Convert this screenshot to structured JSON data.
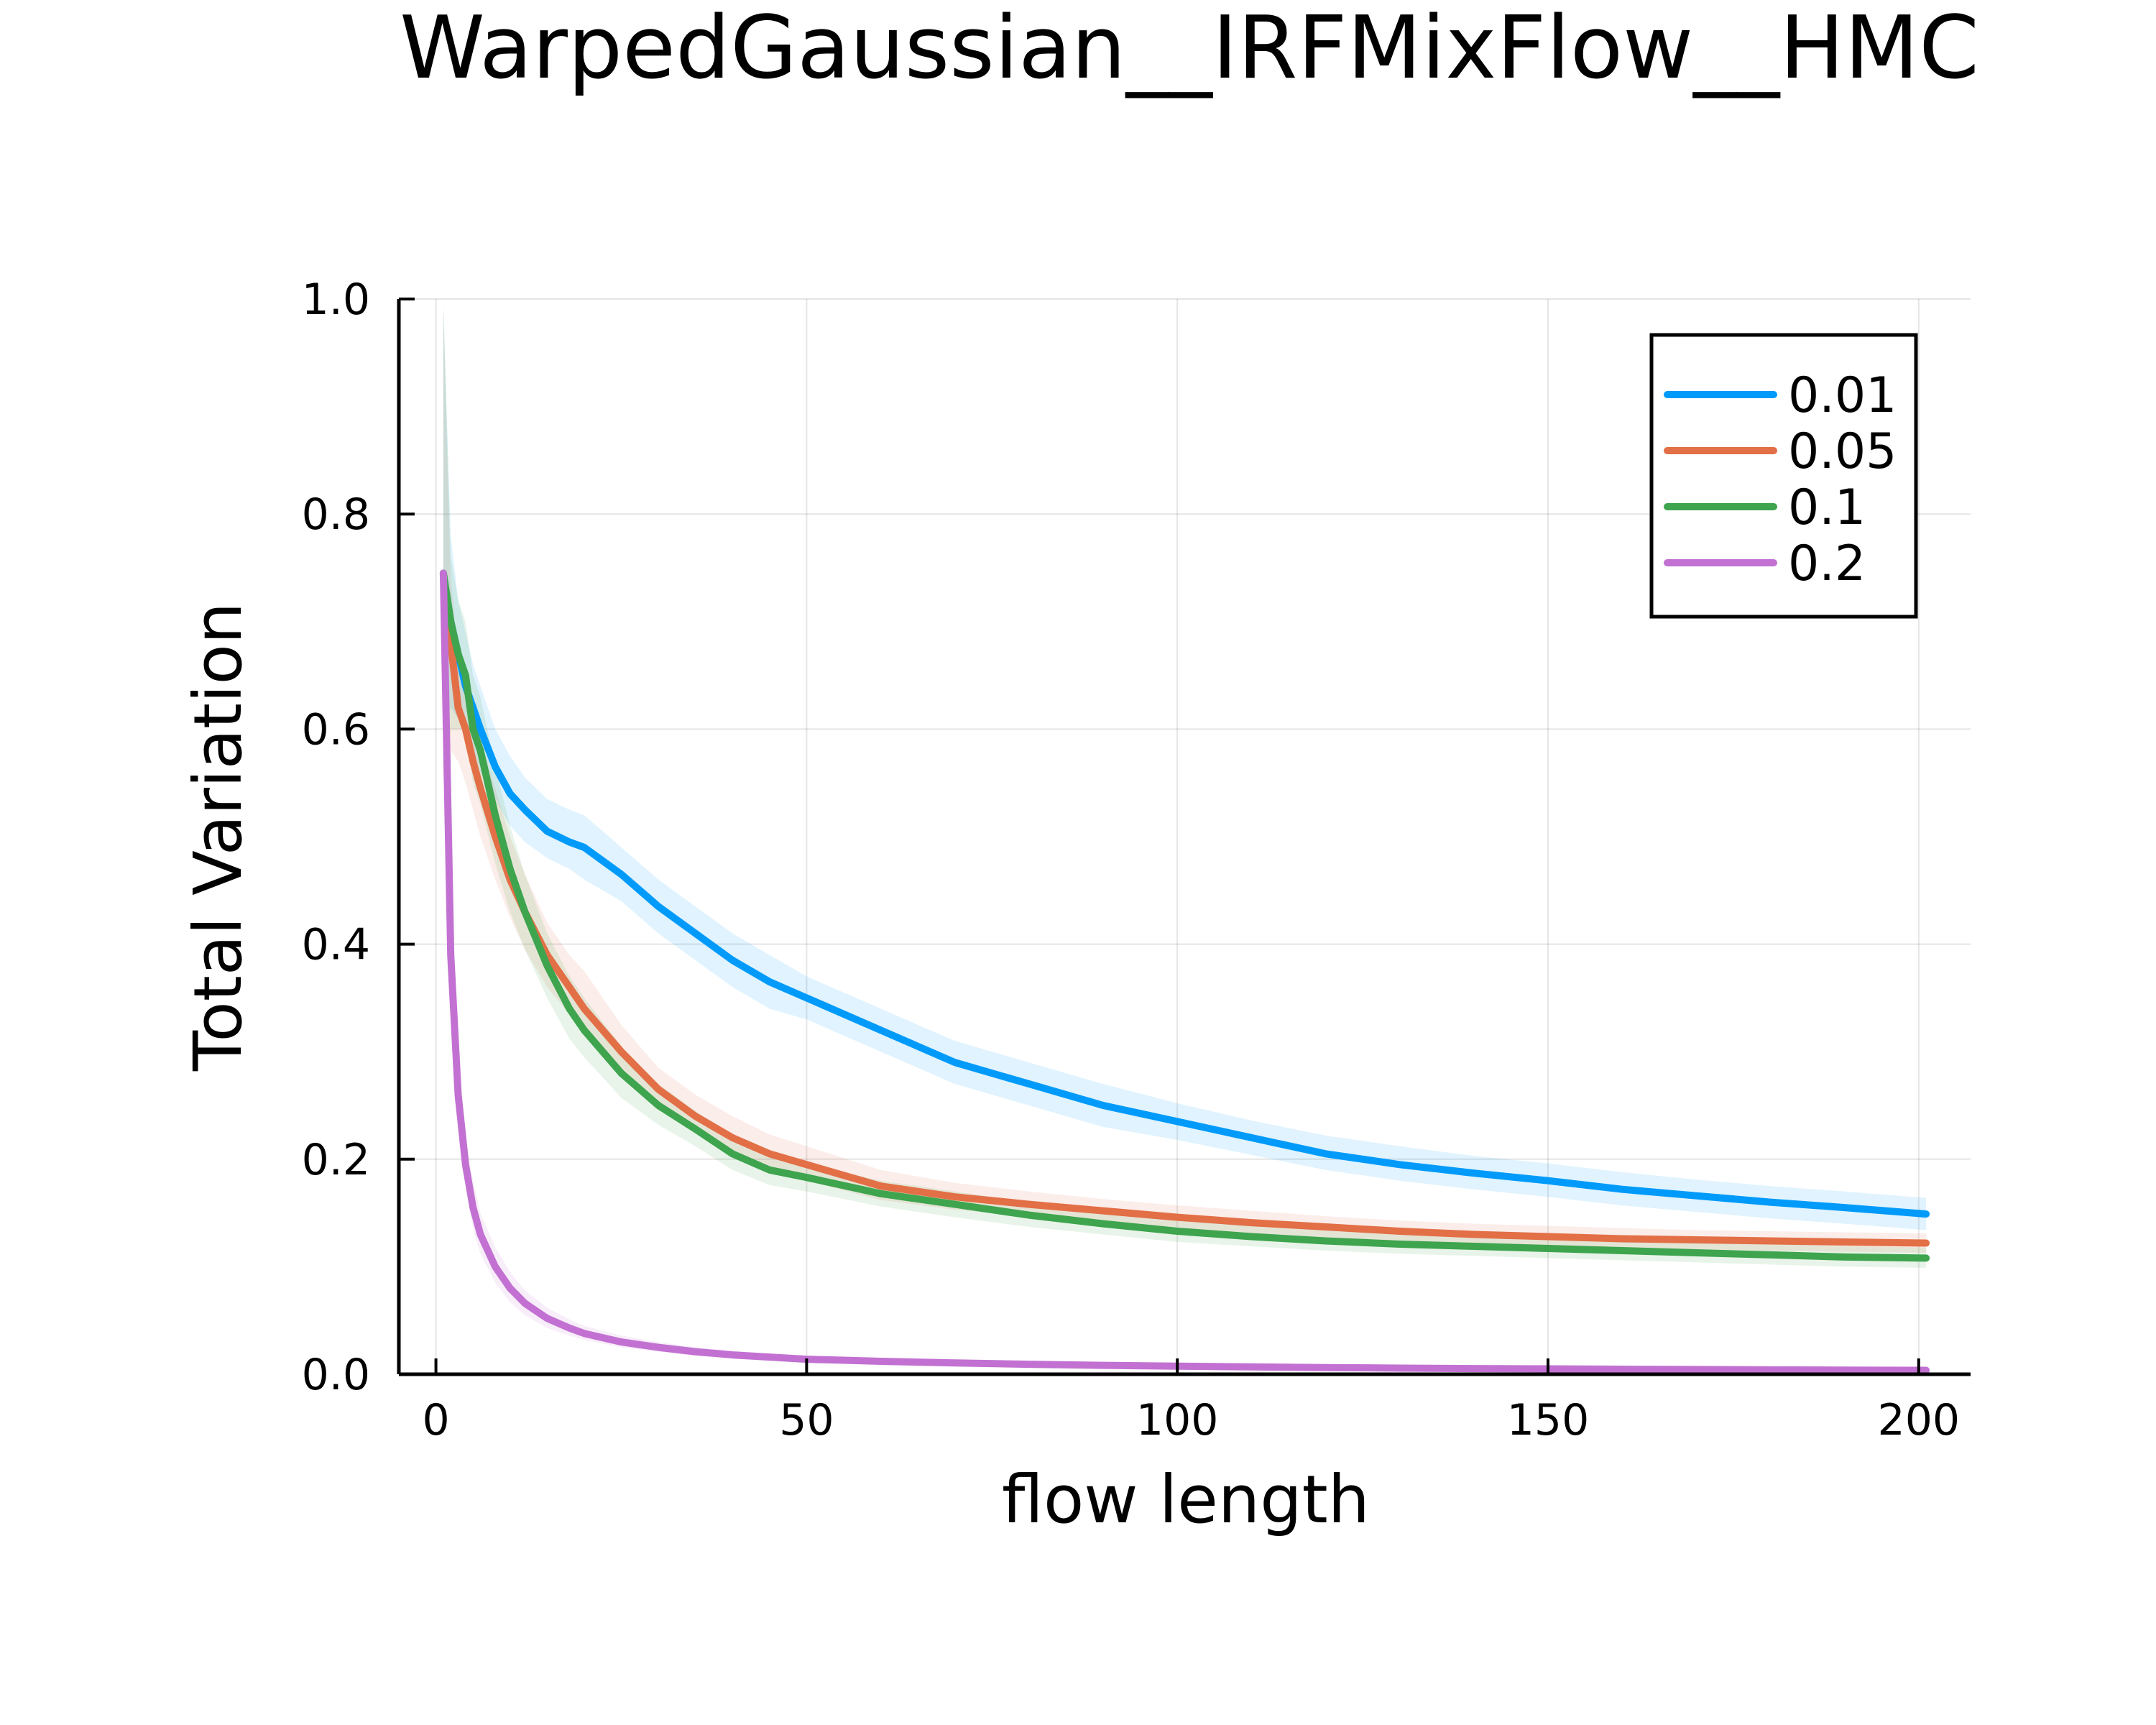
{
  "chart_data": {
    "type": "line",
    "title": "WarpedGaussian__IRFMixFlow__HMC",
    "xlabel": "flow length",
    "ylabel": "Total Variation",
    "xlim": [
      -5,
      207
    ],
    "ylim": [
      0,
      1.0
    ],
    "xticks": [
      "0",
      "50",
      "100",
      "150",
      "200"
    ],
    "yticks": [
      "0.0",
      "0.2",
      "0.4",
      "0.6",
      "0.8",
      "1.0"
    ],
    "grid": true,
    "legend_position": "top-right",
    "x": [
      1,
      2,
      3,
      4,
      5,
      6,
      8,
      10,
      12,
      15,
      18,
      20,
      25,
      30,
      35,
      40,
      45,
      50,
      60,
      70,
      80,
      90,
      100,
      110,
      120,
      130,
      140,
      150,
      160,
      170,
      180,
      190,
      201
    ],
    "series": [
      {
        "name": "0.01",
        "color": "#009AFA",
        "values": [
          0.745,
          0.7,
          0.67,
          0.64,
          0.62,
          0.6,
          0.565,
          0.54,
          0.525,
          0.505,
          0.495,
          0.49,
          0.465,
          0.435,
          0.41,
          0.385,
          0.365,
          0.35,
          0.32,
          0.29,
          0.27,
          0.25,
          0.235,
          0.22,
          0.205,
          0.195,
          0.187,
          0.18,
          0.172,
          0.166,
          0.16,
          0.155,
          0.149
        ],
        "band_upper": [
          0.99,
          0.78,
          0.72,
          0.69,
          0.66,
          0.64,
          0.6,
          0.575,
          0.555,
          0.535,
          0.525,
          0.52,
          0.49,
          0.46,
          0.435,
          0.41,
          0.39,
          0.37,
          0.34,
          0.31,
          0.29,
          0.27,
          0.252,
          0.236,
          0.222,
          0.212,
          0.203,
          0.196,
          0.188,
          0.181,
          0.175,
          0.17,
          0.164
        ],
        "band_lower": [
          0.6,
          0.62,
          0.61,
          0.59,
          0.58,
          0.56,
          0.535,
          0.51,
          0.495,
          0.48,
          0.47,
          0.46,
          0.44,
          0.41,
          0.385,
          0.36,
          0.34,
          0.33,
          0.3,
          0.27,
          0.25,
          0.23,
          0.218,
          0.204,
          0.19,
          0.18,
          0.172,
          0.165,
          0.157,
          0.151,
          0.145,
          0.14,
          0.134
        ]
      },
      {
        "name": "0.05",
        "color": "#E26F46",
        "values": [
          0.745,
          0.68,
          0.62,
          0.6,
          0.57,
          0.545,
          0.5,
          0.46,
          0.43,
          0.39,
          0.36,
          0.34,
          0.3,
          0.265,
          0.24,
          0.22,
          0.205,
          0.195,
          0.175,
          0.165,
          0.158,
          0.152,
          0.146,
          0.141,
          0.137,
          0.133,
          0.13,
          0.128,
          0.126,
          0.125,
          0.124,
          0.123,
          0.122
        ],
        "band_upper": [
          0.99,
          0.74,
          0.67,
          0.645,
          0.615,
          0.59,
          0.545,
          0.5,
          0.465,
          0.42,
          0.39,
          0.375,
          0.325,
          0.285,
          0.26,
          0.24,
          0.223,
          0.212,
          0.19,
          0.178,
          0.17,
          0.163,
          0.157,
          0.152,
          0.147,
          0.143,
          0.14,
          0.138,
          0.136,
          0.134,
          0.133,
          0.132,
          0.131
        ],
        "band_lower": [
          0.55,
          0.58,
          0.57,
          0.55,
          0.525,
          0.5,
          0.46,
          0.425,
          0.395,
          0.36,
          0.335,
          0.315,
          0.28,
          0.248,
          0.225,
          0.205,
          0.19,
          0.18,
          0.162,
          0.153,
          0.147,
          0.142,
          0.136,
          0.131,
          0.127,
          0.124,
          0.121,
          0.119,
          0.117,
          0.116,
          0.115,
          0.114,
          0.113
        ]
      },
      {
        "name": "0.1",
        "color": "#3EA44E",
        "values": [
          0.745,
          0.7,
          0.67,
          0.65,
          0.6,
          0.58,
          0.52,
          0.47,
          0.43,
          0.38,
          0.34,
          0.32,
          0.28,
          0.25,
          0.228,
          0.205,
          0.19,
          0.183,
          0.168,
          0.158,
          0.148,
          0.14,
          0.133,
          0.128,
          0.124,
          0.121,
          0.119,
          0.117,
          0.115,
          0.113,
          0.111,
          0.109,
          0.108
        ],
        "band_upper": [
          1.0,
          0.76,
          0.72,
          0.7,
          0.65,
          0.63,
          0.565,
          0.51,
          0.465,
          0.41,
          0.37,
          0.35,
          0.305,
          0.27,
          0.245,
          0.222,
          0.205,
          0.196,
          0.18,
          0.17,
          0.16,
          0.151,
          0.143,
          0.138,
          0.134,
          0.131,
          0.129,
          0.127,
          0.125,
          0.123,
          0.121,
          0.119,
          0.118
        ],
        "band_lower": [
          0.56,
          0.6,
          0.6,
          0.6,
          0.55,
          0.53,
          0.475,
          0.43,
          0.395,
          0.35,
          0.312,
          0.295,
          0.257,
          0.232,
          0.212,
          0.19,
          0.176,
          0.17,
          0.156,
          0.146,
          0.137,
          0.13,
          0.123,
          0.119,
          0.115,
          0.112,
          0.11,
          0.108,
          0.106,
          0.104,
          0.102,
          0.1,
          0.099
        ]
      },
      {
        "name": "0.2",
        "color": "#C271D2",
        "values": [
          0.745,
          0.39,
          0.26,
          0.195,
          0.155,
          0.13,
          0.1,
          0.08,
          0.066,
          0.052,
          0.043,
          0.038,
          0.03,
          0.025,
          0.021,
          0.018,
          0.016,
          0.014,
          0.012,
          0.0105,
          0.0093,
          0.0083,
          0.0075,
          0.0068,
          0.0062,
          0.0057,
          0.0053,
          0.005,
          0.0047,
          0.0044,
          0.0041,
          0.0039,
          0.0037
        ],
        "band_upper": [
          0.76,
          0.42,
          0.29,
          0.22,
          0.18,
          0.15,
          0.118,
          0.095,
          0.078,
          0.062,
          0.051,
          0.045,
          0.036,
          0.03,
          0.025,
          0.022,
          0.019,
          0.017,
          0.0145,
          0.0125,
          0.011,
          0.0098,
          0.0088,
          0.008,
          0.0073,
          0.0067,
          0.0062,
          0.0058,
          0.0055,
          0.0052,
          0.0049,
          0.0046,
          0.0044
        ],
        "band_lower": [
          0.72,
          0.36,
          0.235,
          0.175,
          0.135,
          0.112,
          0.085,
          0.067,
          0.055,
          0.043,
          0.036,
          0.032,
          0.025,
          0.021,
          0.017,
          0.015,
          0.013,
          0.012,
          0.0098,
          0.0086,
          0.0077,
          0.0069,
          0.0062,
          0.0056,
          0.0051,
          0.0047,
          0.0044,
          0.0042,
          0.0039,
          0.0036,
          0.0034,
          0.0032,
          0.003
        ]
      }
    ]
  }
}
